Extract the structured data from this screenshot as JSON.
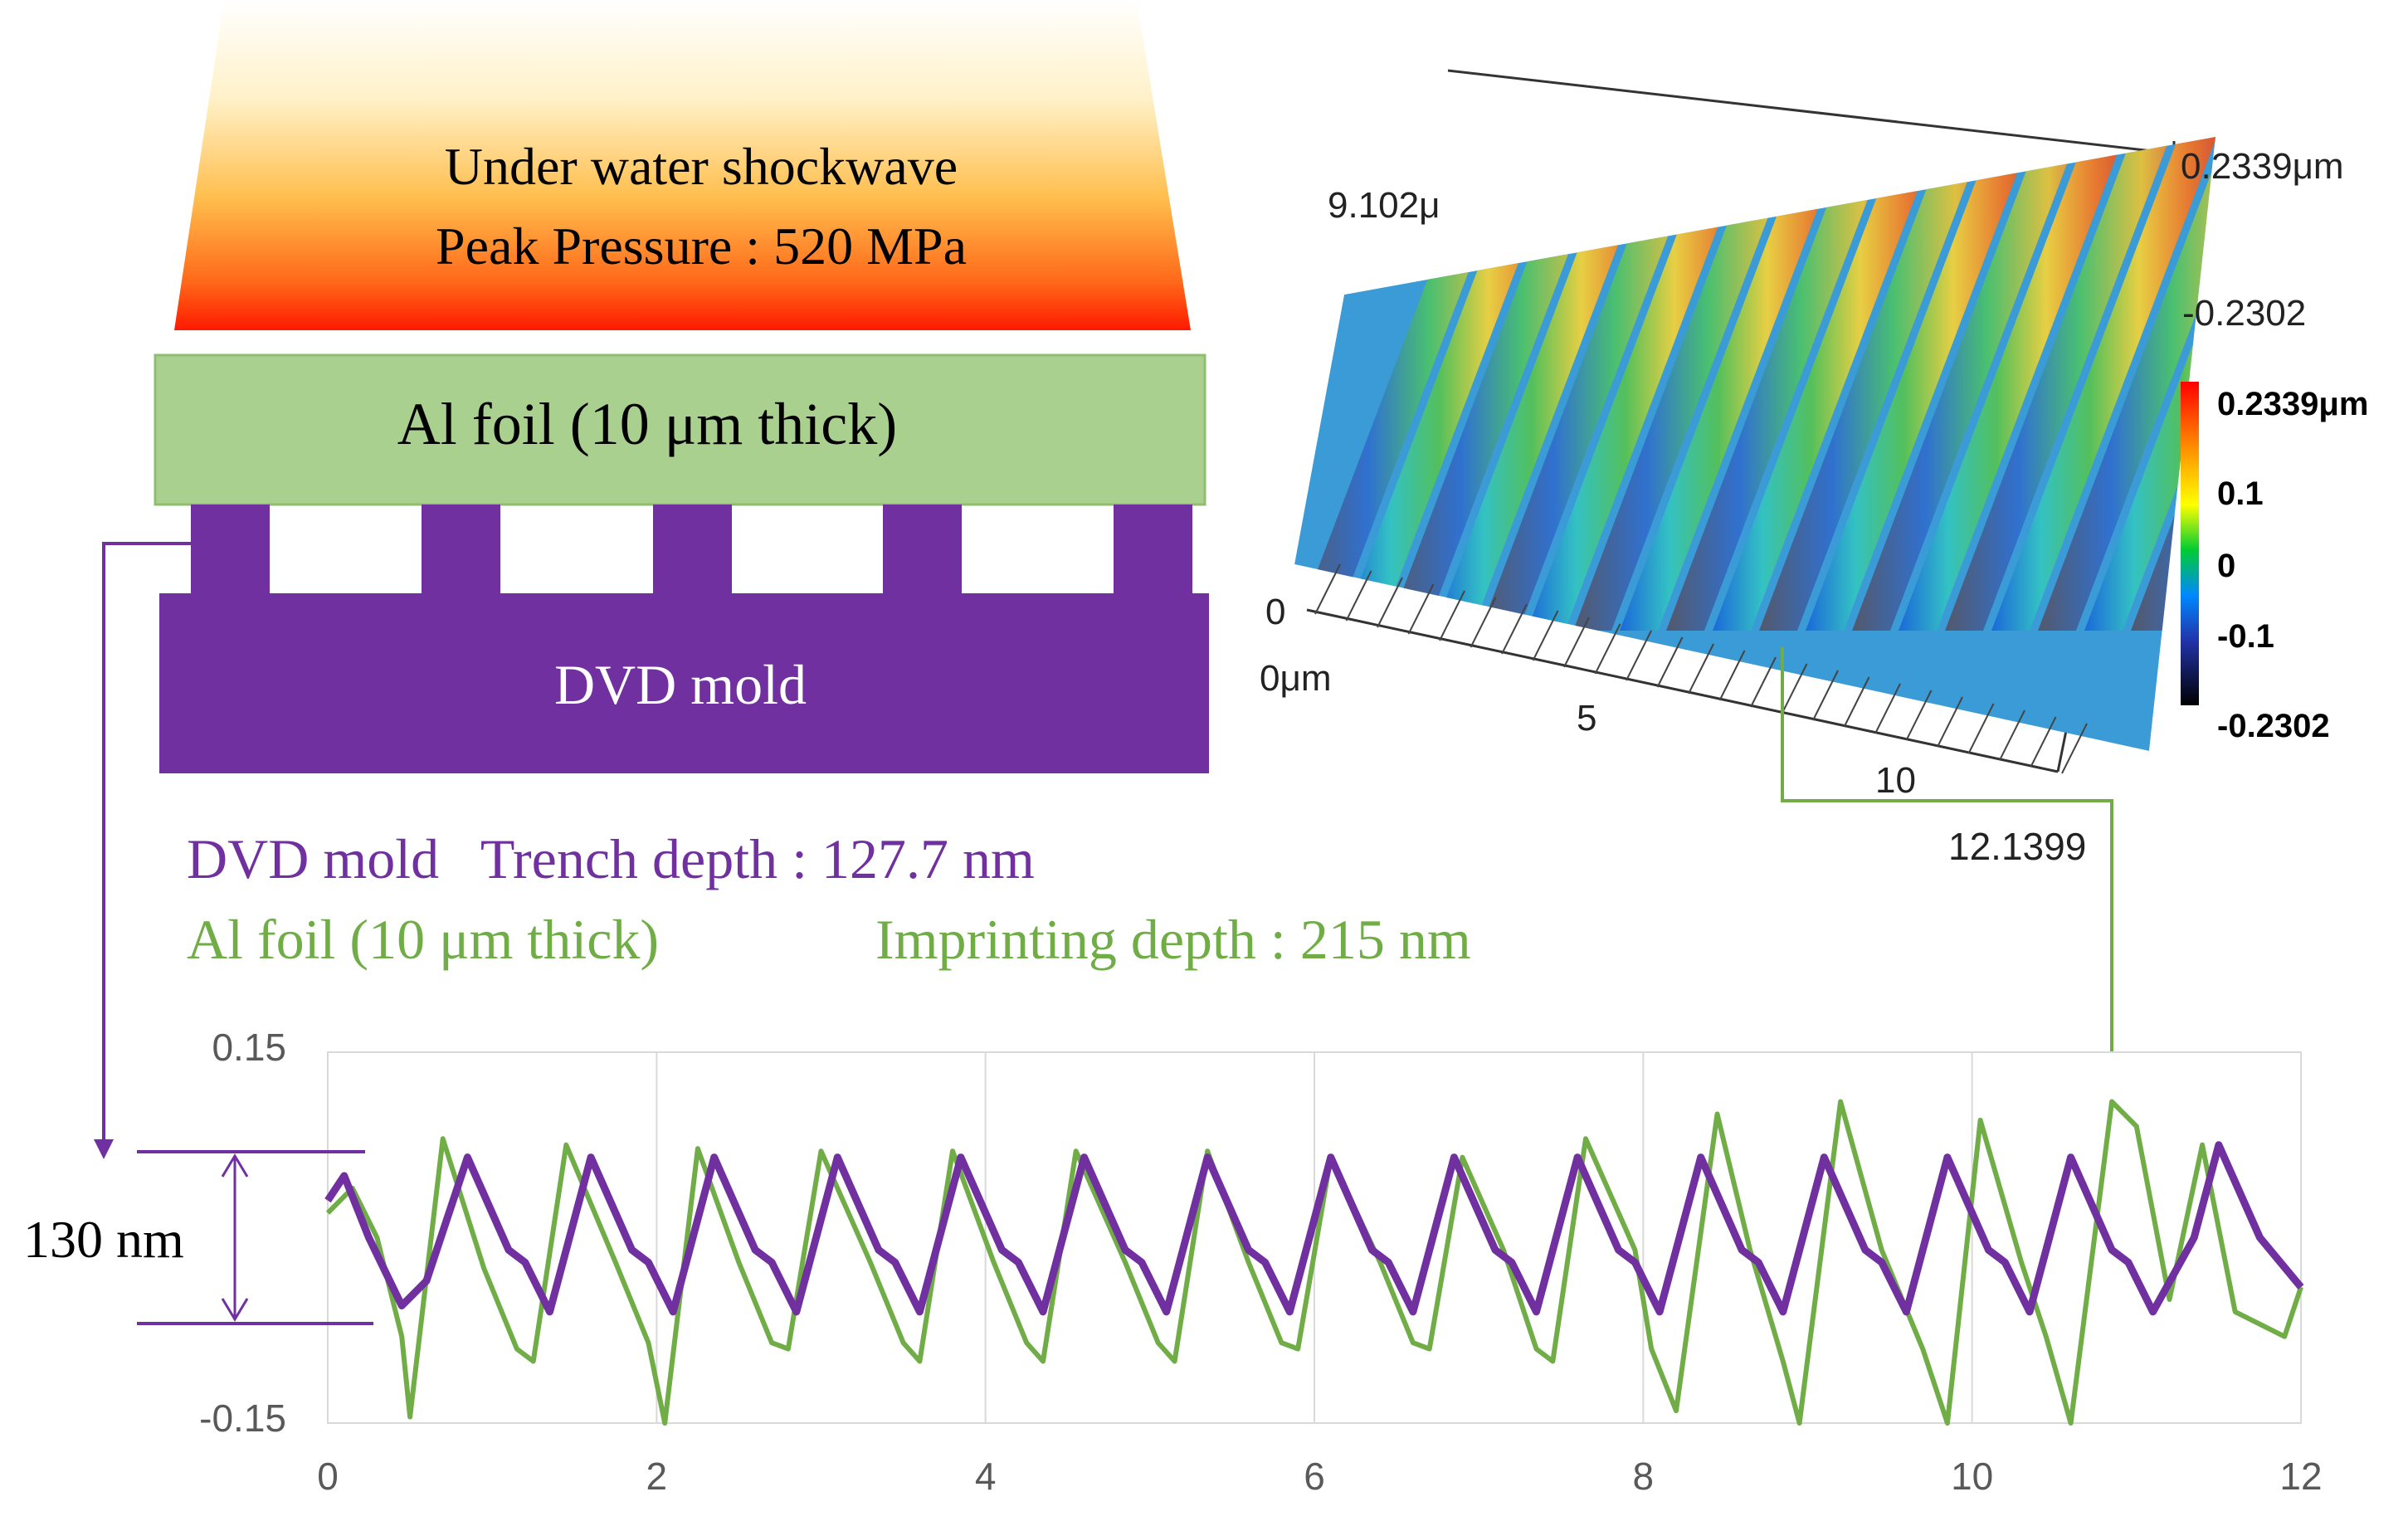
{
  "schematic": {
    "shockwave_line1": "Under water shockwave",
    "shockwave_line2": "Peak Pressure : 520 MPa",
    "al_foil_label": "Al foil (10 μm thick)",
    "dvd_mold_label": "DVD mold"
  },
  "colors": {
    "purple": "#7030a0",
    "green": "#70ad47",
    "foil": "#a9d08e",
    "arrow_purple": "#7030a0",
    "arrow_green": "#70ad47",
    "gradient_top": "#fff8e1",
    "gradient_mid": "#ffb347",
    "gradient_bottom": "#ff1a00"
  },
  "afm": {
    "y_extent_label": "9.102μ",
    "z_top_label": "0.2339μm",
    "z_bottom_label": "-0.2302",
    "origin_z_label": "0",
    "origin_label": "0μm",
    "x_tick_5": "5",
    "x_tick_10": "10",
    "profile_position_label": "12.1399",
    "colorbar_labels": [
      "0.2339μm",
      "0.1",
      "0",
      "-0.1",
      "-0.2302"
    ]
  },
  "results": {
    "dvd_line": "DVD mold   Trench depth : 127.7 nm",
    "al_line_label": "Al foil (10 μm thick)",
    "al_line_value": "Imprinting depth : 215 nm"
  },
  "depth_annotation": "130 nm",
  "chart_data": {
    "type": "line",
    "ylim": [
      -0.15,
      0.15
    ],
    "xlim": [
      0,
      12
    ],
    "y_tick_labels": [
      "0.15",
      "-0.15"
    ],
    "x_ticks": [
      0,
      2,
      4,
      6,
      8,
      10,
      12
    ],
    "x_tick_labels": [
      "0",
      "2",
      "4",
      "6",
      "8",
      "10",
      "12"
    ],
    "grid": "vertical",
    "series": [
      {
        "name": "DVD mold",
        "color": "#7030a0",
        "x": [
          0.0,
          0.1,
          0.25,
          0.45,
          0.6,
          0.85,
          1.1,
          1.2,
          1.35,
          1.6,
          1.85,
          1.95,
          2.1,
          2.35,
          2.6,
          2.7,
          2.85,
          3.1,
          3.35,
          3.45,
          3.6,
          3.85,
          4.1,
          4.2,
          4.35,
          4.6,
          4.85,
          4.95,
          5.1,
          5.35,
          5.6,
          5.7,
          5.85,
          6.1,
          6.35,
          6.45,
          6.6,
          6.85,
          7.1,
          7.2,
          7.35,
          7.6,
          7.85,
          7.95,
          8.1,
          8.35,
          8.6,
          8.7,
          8.85,
          9.1,
          9.35,
          9.45,
          9.6,
          9.85,
          10.1,
          10.2,
          10.35,
          10.6,
          10.85,
          10.95,
          11.1,
          11.35,
          11.5,
          11.75,
          12.0
        ],
        "y": [
          0.03,
          0.05,
          0.0,
          -0.055,
          -0.035,
          0.065,
          -0.01,
          -0.02,
          -0.06,
          0.065,
          -0.01,
          -0.02,
          -0.06,
          0.065,
          -0.01,
          -0.02,
          -0.06,
          0.065,
          -0.01,
          -0.02,
          -0.06,
          0.065,
          -0.01,
          -0.02,
          -0.06,
          0.065,
          -0.01,
          -0.02,
          -0.06,
          0.065,
          -0.01,
          -0.02,
          -0.06,
          0.065,
          -0.01,
          -0.02,
          -0.06,
          0.065,
          -0.01,
          -0.02,
          -0.06,
          0.065,
          -0.01,
          -0.02,
          -0.06,
          0.065,
          -0.01,
          -0.02,
          -0.06,
          0.065,
          -0.01,
          -0.02,
          -0.06,
          0.065,
          -0.01,
          -0.02,
          -0.06,
          0.065,
          -0.01,
          -0.02,
          -0.06,
          0.0,
          0.075,
          0.0,
          -0.04
        ]
      },
      {
        "name": "Al foil (10 μm thick)",
        "color": "#70ad47",
        "x": [
          0.0,
          0.15,
          0.3,
          0.45,
          0.5,
          0.7,
          0.95,
          1.15,
          1.25,
          1.45,
          1.75,
          1.95,
          2.05,
          2.25,
          2.5,
          2.7,
          2.8,
          3.0,
          3.3,
          3.5,
          3.6,
          3.8,
          4.05,
          4.25,
          4.35,
          4.55,
          4.85,
          5.05,
          5.15,
          5.35,
          5.6,
          5.8,
          5.9,
          6.1,
          6.4,
          6.6,
          6.7,
          6.9,
          7.15,
          7.35,
          7.45,
          7.65,
          7.95,
          8.05,
          8.2,
          8.45,
          8.65,
          8.85,
          8.95,
          9.2,
          9.45,
          9.7,
          9.85,
          10.05,
          10.3,
          10.45,
          10.6,
          10.85,
          11.0,
          11.2,
          11.4,
          11.6,
          11.75,
          11.9,
          12.0
        ],
        "y": [
          0.02,
          0.04,
          0.0,
          -0.08,
          -0.145,
          0.08,
          -0.025,
          -0.09,
          -0.1,
          0.075,
          -0.02,
          -0.085,
          -0.15,
          0.072,
          -0.02,
          -0.085,
          -0.09,
          0.07,
          -0.02,
          -0.085,
          -0.1,
          0.07,
          -0.02,
          -0.085,
          -0.1,
          0.07,
          -0.02,
          -0.085,
          -0.1,
          0.07,
          -0.02,
          -0.085,
          -0.09,
          0.065,
          -0.02,
          -0.085,
          -0.09,
          0.065,
          -0.01,
          -0.09,
          -0.1,
          0.08,
          -0.01,
          -0.09,
          -0.14,
          0.1,
          -0.01,
          -0.1,
          -0.15,
          0.11,
          -0.01,
          -0.09,
          -0.15,
          0.095,
          -0.02,
          -0.08,
          -0.15,
          0.11,
          0.09,
          -0.05,
          0.075,
          -0.06,
          -0.07,
          -0.08,
          -0.04
        ]
      }
    ]
  }
}
